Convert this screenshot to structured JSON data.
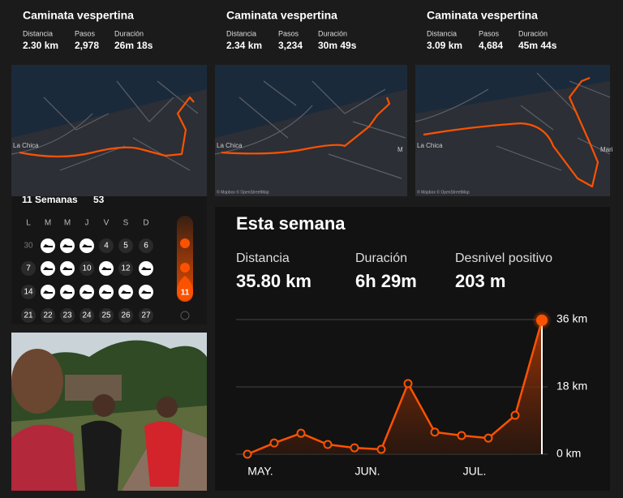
{
  "activities": [
    {
      "title": "Caminata vespertina",
      "stats": [
        {
          "label": "Distancia",
          "value": "2.30 km"
        },
        {
          "label": "Pasos",
          "value": "2,978"
        },
        {
          "label": "Duración",
          "value": "26m 18s"
        }
      ],
      "map_labels": [
        "La Chica"
      ]
    },
    {
      "title": "Caminata vespertina",
      "stats": [
        {
          "label": "Distancia",
          "value": "2.34 km"
        },
        {
          "label": "Pasos",
          "value": "3,234"
        },
        {
          "label": "Duración",
          "value": "30m 49s"
        }
      ],
      "map_labels": [
        "La Chica",
        "M"
      ],
      "attribution": "© Mapbox © OpenStreetMap"
    },
    {
      "title": "Caminata vespertina",
      "stats": [
        {
          "label": "Distancia",
          "value": "3.09 km"
        },
        {
          "label": "Pasos",
          "value": "4,684"
        },
        {
          "label": "Duración",
          "value": "45m 44s"
        }
      ],
      "map_labels": [
        "La Chica",
        "Mari"
      ],
      "attribution": "© Mapbox © OpenStreetMap"
    }
  ],
  "calendar": {
    "title": "11 Semanas",
    "count": "53",
    "weekdays": [
      "L",
      "M",
      "M",
      "J",
      "V",
      "S",
      "D"
    ],
    "rows": [
      [
        "30",
        null,
        null,
        null,
        "4",
        "5",
        "6"
      ],
      [
        "7",
        null,
        null,
        "10",
        null,
        "12",
        null
      ],
      [
        "14",
        null,
        null,
        null,
        null,
        null,
        null
      ],
      [
        "21",
        "22",
        "23",
        "24",
        "25",
        "26",
        "27"
      ]
    ],
    "streak": "11"
  },
  "weekly": {
    "title": "Esta semana",
    "stats": [
      {
        "label": "Distancia",
        "value": "35.80 km"
      },
      {
        "label": "Duración",
        "value": "6h 29m"
      },
      {
        "label": "Desnivel positivo",
        "value": "203 m"
      }
    ],
    "chart_data": {
      "type": "line",
      "categories": [
        "MAY.",
        null,
        null,
        null,
        "JUN.",
        null,
        null,
        null,
        "JUL.",
        null,
        null,
        null
      ],
      "values": [
        0,
        3,
        5.6,
        2.6,
        1.7,
        1.3,
        18.9,
        5.9,
        5,
        4.3,
        10.4,
        35.8
      ],
      "color": "#fc5200",
      "ylim": [
        0,
        36
      ],
      "yticks": [
        {
          "value": 0,
          "label": "0 km"
        },
        {
          "value": 18,
          "label": "18 km"
        },
        {
          "value": 36,
          "label": "36 km"
        }
      ],
      "grid": true
    }
  }
}
